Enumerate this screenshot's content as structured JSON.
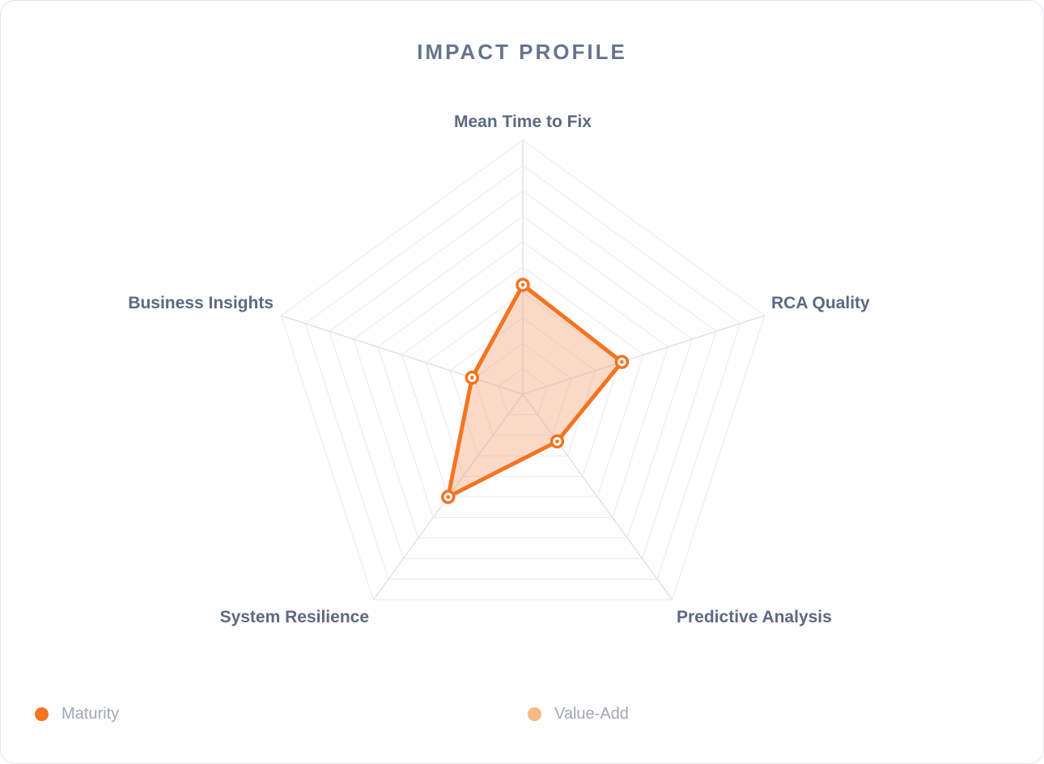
{
  "chart_data": {
    "type": "radar",
    "title": "IMPACT PROFILE",
    "axes": [
      "Mean Time to Fix",
      "RCA Quality",
      "Predictive Analysis",
      "System Resilience",
      "Business Insights"
    ],
    "rmax": 10,
    "rings": 10,
    "series": [
      {
        "name": "Maturity",
        "values": [
          4.3,
          4.1,
          2.3,
          5.0,
          2.1
        ],
        "color": "#f47422",
        "fill": "rgba(247,142,88,0.33)"
      },
      {
        "name": "Value-Add",
        "values": [],
        "color": "#f8b986"
      }
    ]
  }
}
